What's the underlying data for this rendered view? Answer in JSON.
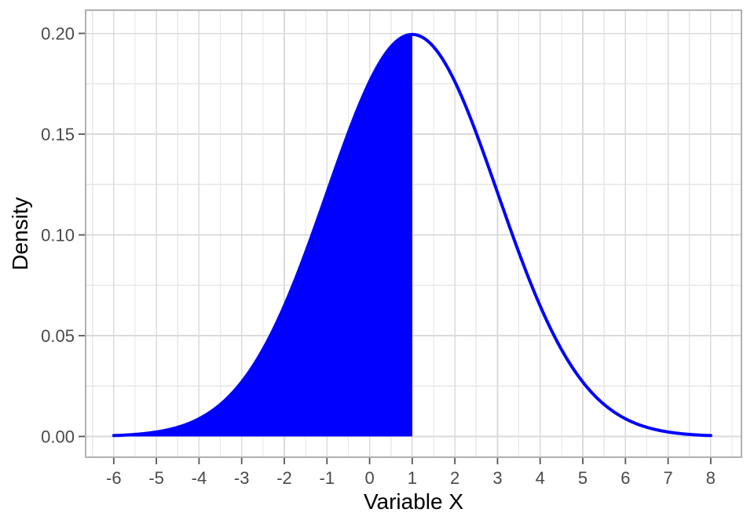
{
  "figure": {
    "background": "#FFFFFF"
  },
  "chart_data": {
    "type": "area",
    "title": "",
    "xlabel": "Variable X",
    "ylabel": "Density",
    "x_ticks": [
      -6,
      -5,
      -4,
      -3,
      -2,
      -1,
      0,
      1,
      2,
      3,
      4,
      5,
      6,
      7,
      8
    ],
    "x_tick_labels": [
      "-6",
      "-5",
      "-4",
      "-3",
      "-2",
      "-1",
      "0",
      "1",
      "2",
      "3",
      "4",
      "5",
      "6",
      "7",
      "8"
    ],
    "y_ticks": [
      0,
      0.05,
      0.1,
      0.15,
      0.2
    ],
    "y_tick_labels": [
      "0.00",
      "0.05",
      "0.10",
      "0.15",
      "0.20"
    ],
    "x_minor_step": 0.5,
    "y_minor_step": 0.025,
    "axis_range": {
      "x_min": -6.66,
      "x_max": 8.72,
      "y_min": -0.0103,
      "y_max": 0.2115
    },
    "data_range": {
      "x_min": -6,
      "x_max": 8,
      "y_min": 0,
      "y_max": 0.1995
    },
    "distribution": {
      "family": "normal",
      "mean": 1,
      "sd": 2,
      "peak_x": 1,
      "peak_density": 0.1995
    },
    "shaded_region": {
      "x_from": -6,
      "x_to": 1
    },
    "curve_step": 0.05,
    "series": [
      {
        "name": "density-curve",
        "points": [
          [
            -6,
            0.000436
          ],
          [
            -5.5,
            0.001014
          ],
          [
            -5,
            0.002216
          ],
          [
            -4.5,
            0.004547
          ],
          [
            -4,
            0.008764
          ],
          [
            -3.5,
            0.01587
          ],
          [
            -3,
            0.026995
          ],
          [
            -2.5,
            0.043138
          ],
          [
            -2,
            0.064759
          ],
          [
            -1.5,
            0.091325
          ],
          [
            -1,
            0.120985
          ],
          [
            -0.5,
            0.150569
          ],
          [
            0,
            0.176033
          ],
          [
            0.5,
            0.193334
          ],
          [
            1,
            0.199471
          ],
          [
            1.5,
            0.193334
          ],
          [
            2,
            0.176033
          ],
          [
            2.5,
            0.150569
          ],
          [
            3,
            0.120985
          ],
          [
            3.5,
            0.091325
          ],
          [
            4,
            0.064759
          ],
          [
            4.5,
            0.043138
          ],
          [
            5,
            0.026995
          ],
          [
            5.5,
            0.01587
          ],
          [
            6,
            0.008764
          ],
          [
            6.5,
            0.004547
          ],
          [
            7,
            0.002216
          ],
          [
            7.5,
            0.001014
          ],
          [
            8,
            0.000436
          ]
        ]
      }
    ],
    "grid": "on",
    "legend": "none",
    "colors": {
      "curve": "#0000FF",
      "fill": "#0000FF",
      "panel_border": "#B0B0B0",
      "grid_major": "#DBDBDB",
      "grid_minor": "#E7E7E7",
      "tick": "#555555",
      "tick_label": "#4A4A4A",
      "axis_title": "#000000",
      "background": "#FFFFFF"
    }
  }
}
